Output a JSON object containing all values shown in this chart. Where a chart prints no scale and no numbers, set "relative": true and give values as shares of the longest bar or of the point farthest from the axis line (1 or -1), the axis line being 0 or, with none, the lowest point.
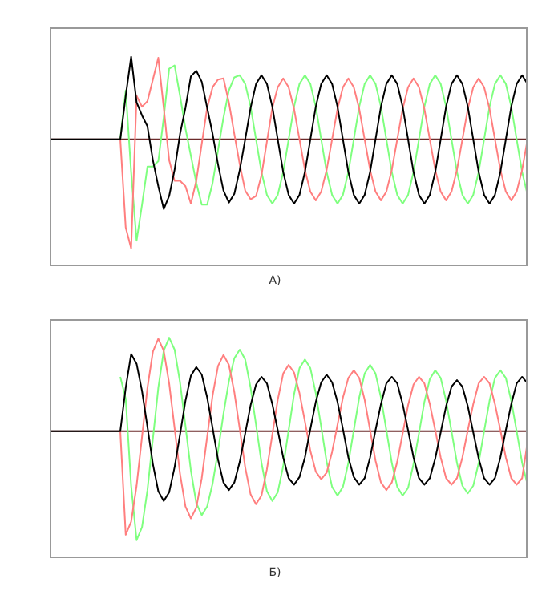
{
  "chart_data": [
    {
      "type": "line",
      "title": "А)",
      "relative": true,
      "ref_lines": [
        {
          "axis": "y",
          "value": 0,
          "color": "#6b2b2b"
        }
      ],
      "categories": [
        null,
        null,
        null,
        null,
        null,
        null,
        null,
        null,
        null,
        null,
        null,
        null,
        null,
        null,
        null,
        null,
        null,
        null,
        null,
        null,
        null,
        null,
        null,
        null,
        null,
        null,
        null,
        null,
        null,
        null,
        null,
        null,
        null,
        null,
        null,
        null,
        null,
        null,
        null,
        null,
        null,
        null,
        null,
        null,
        null,
        null,
        null,
        null,
        null,
        null,
        null,
        null,
        null,
        null,
        null,
        null,
        null,
        null,
        null,
        null,
        null,
        null,
        null,
        null,
        null,
        null,
        null,
        null,
        null,
        null,
        null,
        null,
        null,
        null,
        null,
        null,
        null,
        null,
        null,
        null,
        null,
        null,
        null,
        null,
        null,
        null,
        null,
        null,
        null
      ],
      "series": [
        {
          "color": "#000000",
          "values": [
            0,
            0,
            0,
            0,
            0,
            0,
            0,
            0,
            0,
            0,
            0,
            0,
            0,
            0,
            0.4,
            0.76,
            0.34,
            0.22,
            0.12,
            -0.19,
            -0.43,
            -0.64,
            -0.52,
            -0.28,
            0.05,
            0.29,
            0.58,
            0.63,
            0.53,
            0.29,
            0.05,
            -0.23,
            -0.47,
            -0.58,
            -0.5,
            -0.28,
            0,
            0.29,
            0.51,
            0.59,
            0.51,
            0.3,
            0,
            -0.3,
            -0.51,
            -0.59,
            -0.51,
            -0.3,
            0,
            0.3,
            0.51,
            0.59,
            0.51,
            0.3,
            0,
            -0.3,
            -0.51,
            -0.59,
            -0.51,
            -0.3,
            0,
            0.3,
            0.51,
            0.59,
            0.51,
            0.3,
            0,
            -0.3,
            -0.51,
            -0.59,
            -0.51,
            -0.3,
            0,
            0.3,
            0.51,
            0.59,
            0.51,
            0.3,
            0,
            -0.3,
            -0.51,
            -0.59,
            -0.51,
            -0.3,
            0,
            0.3,
            0.51,
            0.59,
            0.51
          ]
        },
        {
          "color": "#ff7f7f",
          "values": [
            null,
            null,
            null,
            null,
            null,
            null,
            null,
            null,
            null,
            null,
            null,
            null,
            null,
            0,
            -0.81,
            -1,
            0.4,
            0.3,
            0.35,
            0.55,
            0.75,
            0.29,
            -0.19,
            -0.38,
            -0.38,
            -0.43,
            -0.59,
            -0.38,
            -0.04,
            0.29,
            0.48,
            0.55,
            0.56,
            0.34,
            0.05,
            -0.23,
            -0.47,
            -0.55,
            -0.52,
            -0.33,
            -0.02,
            0.29,
            0.48,
            0.56,
            0.48,
            0.28,
            0,
            -0.28,
            -0.48,
            -0.56,
            -0.48,
            -0.28,
            0,
            0.28,
            0.48,
            0.56,
            0.48,
            0.28,
            0,
            -0.28,
            -0.48,
            -0.56,
            -0.48,
            -0.28,
            0,
            0.28,
            0.48,
            0.56,
            0.48,
            0.28,
            0,
            -0.28,
            -0.48,
            -0.56,
            -0.48,
            -0.28,
            0,
            0.28,
            0.48,
            0.56,
            0.48,
            0.28,
            0,
            -0.28,
            -0.48,
            -0.56,
            -0.48,
            -0.28,
            0
          ]
        },
        {
          "color": "#7fff7f",
          "values": [
            null,
            null,
            null,
            null,
            null,
            null,
            null,
            null,
            null,
            null,
            null,
            null,
            null,
            0,
            0.45,
            -0.3,
            -0.93,
            -0.6,
            -0.25,
            -0.25,
            -0.2,
            0.2,
            0.65,
            0.68,
            0.4,
            0.1,
            -0.15,
            -0.4,
            -0.6,
            -0.6,
            -0.4,
            -0.1,
            0.2,
            0.45,
            0.57,
            0.59,
            0.51,
            0.3,
            0,
            -0.3,
            -0.51,
            -0.59,
            -0.51,
            -0.3,
            0,
            0.3,
            0.51,
            0.59,
            0.51,
            0.3,
            0,
            -0.3,
            -0.51,
            -0.59,
            -0.51,
            -0.3,
            0,
            0.3,
            0.51,
            0.59,
            0.51,
            0.3,
            0,
            -0.3,
            -0.51,
            -0.59,
            -0.51,
            -0.3,
            0,
            0.3,
            0.51,
            0.59,
            0.51,
            0.3,
            0,
            -0.3,
            -0.51,
            -0.59,
            -0.51,
            -0.3,
            0,
            0.3,
            0.51,
            0.59,
            0.51,
            0.3,
            0,
            -0.3,
            -0.51
          ]
        }
      ]
    },
    {
      "type": "line",
      "title": "Б)",
      "relative": true,
      "ref_lines": [
        {
          "axis": "y",
          "value": 0,
          "color": "#6b2b2b"
        }
      ],
      "categories": [
        null,
        null,
        null,
        null,
        null,
        null,
        null,
        null,
        null,
        null,
        null,
        null,
        null,
        null,
        null,
        null,
        null,
        null,
        null,
        null,
        null,
        null,
        null,
        null,
        null,
        null,
        null,
        null,
        null,
        null,
        null,
        null,
        null,
        null,
        null,
        null,
        null,
        null,
        null,
        null,
        null,
        null,
        null,
        null,
        null,
        null,
        null,
        null,
        null,
        null,
        null,
        null,
        null,
        null,
        null,
        null,
        null,
        null,
        null,
        null,
        null,
        null,
        null,
        null,
        null,
        null,
        null,
        null,
        null,
        null,
        null,
        null,
        null,
        null,
        null,
        null,
        null,
        null,
        null,
        null,
        null,
        null,
        null,
        null,
        null,
        null,
        null,
        null,
        null
      ],
      "series": [
        {
          "color": "#000000",
          "values": [
            0,
            0,
            0,
            0,
            0,
            0,
            0,
            0,
            0,
            0,
            0,
            0,
            0,
            0,
            0.4,
            0.71,
            0.62,
            0.37,
            0.04,
            -0.3,
            -0.55,
            -0.64,
            -0.56,
            -0.33,
            -0.03,
            0.28,
            0.51,
            0.59,
            0.52,
            0.31,
            0.03,
            -0.26,
            -0.47,
            -0.54,
            -0.47,
            -0.28,
            -0.02,
            0.24,
            0.43,
            0.5,
            0.44,
            0.25,
            0.01,
            -0.24,
            -0.43,
            -0.49,
            -0.42,
            -0.24,
            0.02,
            0.27,
            0.45,
            0.52,
            0.45,
            0.27,
            0.02,
            -0.24,
            -0.42,
            -0.49,
            -0.43,
            -0.24,
            0.01,
            0.25,
            0.44,
            0.5,
            0.44,
            0.25,
            0.01,
            -0.24,
            -0.43,
            -0.49,
            -0.43,
            -0.25,
            -0.01,
            0.23,
            0.41,
            0.47,
            0.41,
            0.23,
            -0.01,
            -0.25,
            -0.43,
            -0.49,
            -0.43,
            -0.24,
            0.01,
            0.25,
            0.44,
            0.5,
            0.44
          ]
        },
        {
          "color": "#ff7f7f",
          "values": [
            null,
            null,
            null,
            null,
            null,
            null,
            null,
            null,
            null,
            null,
            null,
            null,
            null,
            0,
            -0.95,
            -0.83,
            -0.5,
            -0.05,
            0.4,
            0.73,
            0.85,
            0.74,
            0.44,
            0.03,
            -0.39,
            -0.69,
            -0.8,
            -0.7,
            -0.43,
            -0.05,
            0.33,
            0.6,
            0.7,
            0.61,
            0.36,
            0.02,
            -0.33,
            -0.58,
            -0.67,
            -0.59,
            -0.35,
            -0.03,
            0.29,
            0.53,
            0.61,
            0.54,
            0.35,
            0.09,
            -0.18,
            -0.37,
            -0.44,
            -0.38,
            -0.19,
            0.06,
            0.31,
            0.49,
            0.56,
            0.49,
            0.29,
            0.01,
            -0.27,
            -0.47,
            -0.54,
            -0.47,
            -0.28,
            -0.02,
            0.24,
            0.43,
            0.5,
            0.44,
            0.25,
            0.01,
            -0.24,
            -0.43,
            -0.49,
            -0.43,
            -0.24,
            0.01,
            0.25,
            0.44,
            0.5,
            0.44,
            0.25,
            0.01,
            -0.24,
            -0.43,
            -0.49,
            -0.43,
            -0.1
          ]
        },
        {
          "color": "#7fff7f",
          "values": [
            null,
            null,
            null,
            null,
            null,
            null,
            null,
            null,
            null,
            null,
            null,
            null,
            null,
            0.5,
            0.3,
            -0.5,
            -1,
            -0.88,
            -0.54,
            -0.07,
            0.4,
            0.74,
            0.86,
            0.75,
            0.45,
            0.05,
            -0.36,
            -0.66,
            -0.77,
            -0.69,
            -0.48,
            -0.18,
            0.16,
            0.46,
            0.67,
            0.75,
            0.66,
            0.4,
            0.06,
            -0.29,
            -0.55,
            -0.64,
            -0.56,
            -0.32,
            0.01,
            0.34,
            0.58,
            0.66,
            0.58,
            0.35,
            0.04,
            -0.28,
            -0.51,
            -0.59,
            -0.51,
            -0.29,
            0.01,
            0.31,
            0.53,
            0.61,
            0.53,
            0.31,
            0.01,
            -0.29,
            -0.51,
            -0.59,
            -0.52,
            -0.3,
            -0.02,
            0.27,
            0.48,
            0.56,
            0.49,
            0.28,
            0,
            -0.29,
            -0.5,
            -0.57,
            -0.5,
            -0.29,
            0,
            0.28,
            0.49,
            0.56,
            0.49,
            0.28,
            0,
            -0.29,
            -0.49
          ]
        }
      ]
    }
  ]
}
